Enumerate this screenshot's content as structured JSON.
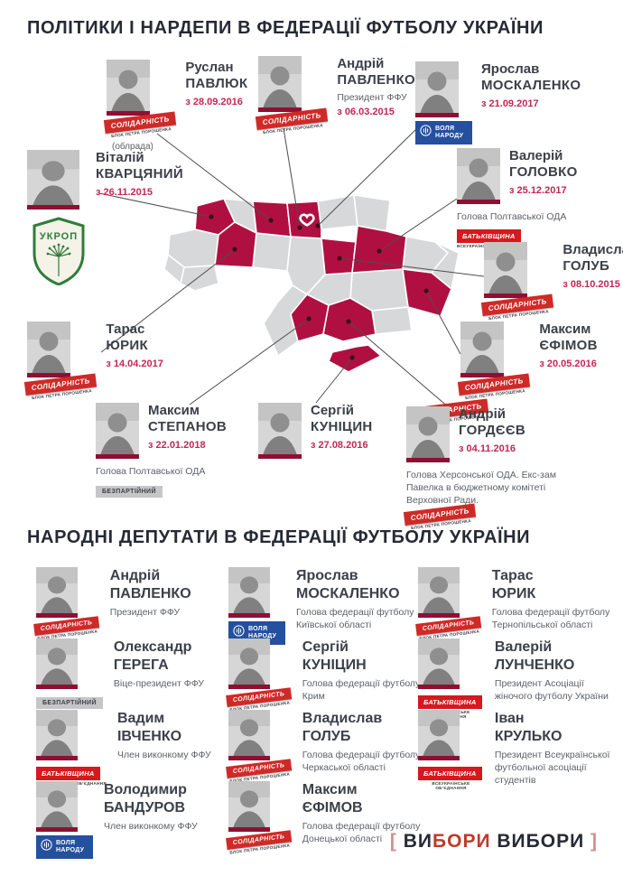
{
  "title1": "ПОЛІТИКИ І НАРДЕПИ В ФЕДЕРАЦІЇ ФУТБОЛУ УКРАЇНИ",
  "title2": "НАРОДНІ ДЕПУТАТИ В ФЕДЕРАЦІЇ ФУТБОЛУ УКРАЇНИ",
  "footer": {
    "open": "[ ",
    "part1": "ВИ",
    "part2": "БОРИ",
    "part3": " ВИБОРИ",
    "close": " ]"
  },
  "colors": {
    "crimson_map": "#b01041",
    "map_gray": "#d7d8da",
    "date_red": "#c22753",
    "solidarnist_red": "#cf2a27",
    "batkivshchyna_red": "#d6181f",
    "volia_blue": "#24509e",
    "bezpartiinyi_gray": "#c6c6c8",
    "ukrop_green": "#2e7d3a",
    "photo_bar_maroon": "#8e0f34",
    "navy_text": "#262a35"
  },
  "badges": {
    "solidarnist": {
      "label": "СОЛІДАРНІСТЬ",
      "sub": "БЛОК ПЕТРА ПОРОШЕНКА"
    },
    "batkivshchyna": {
      "label": "БАТЬКІВЩИНА",
      "sub": "ВСЕУКРАЇНСЬКЕ ОБ’ЄДНАННЯ"
    },
    "volia": {
      "label": "ВОЛЯ НАРОДУ"
    },
    "bezpartiinyi": {
      "label": "БЕЗПАРТІЙНИЙ"
    },
    "ukrop": {
      "label": "УКРОП"
    }
  },
  "network": {
    "people": [
      {
        "id": "pavliuk",
        "first": "Руслан",
        "last": "ПАВЛЮК",
        "date": "з 28.09.2016",
        "badge": "solidarnist",
        "note": "(облрада)"
      },
      {
        "id": "pavlenko",
        "first": "Андрій",
        "last": "ПАВЛЕНКО",
        "role": "Президент ФФУ",
        "date": "з 06.03.2015",
        "badge": "solidarnist"
      },
      {
        "id": "moskalenko",
        "first": "Ярослав",
        "last": "МОСКАЛЕНКО",
        "date": "з 21.09.2017",
        "badge": "volia"
      },
      {
        "id": "kvartsianyi",
        "first": "Віталій",
        "last": "КВАРЦЯНИЙ",
        "date": "з 26.11.2015",
        "badge": "ukrop"
      },
      {
        "id": "holovko",
        "first": "Валерій",
        "last": "ГОЛОВКО",
        "date": "з 25.12.2017",
        "subtitle": "Голова Полтавської ОДА",
        "badge": "batkivshchyna"
      },
      {
        "id": "holub",
        "first": "Владислав",
        "last": "ГОЛУБ",
        "date": "з 08.10.2015",
        "badge": "solidarnist"
      },
      {
        "id": "yefimov",
        "first": "Максим",
        "last": "ЄФІМОВ",
        "date": "з 20.05.2016",
        "badge": "solidarnist"
      },
      {
        "id": "yuryk",
        "first": "Тарас",
        "last": "ЮРИК",
        "date": "з 14.04.2017",
        "badge": "solidarnist"
      },
      {
        "id": "stepanov",
        "first": "Максим",
        "last": "СТЕПАНОВ",
        "date": "з 22.01.2018",
        "subtitle": "Голова Полтавської ОДА",
        "badge": "bezpartiinyi"
      },
      {
        "id": "kunitsyn",
        "first": "Сергій",
        "last": "КУНІЦИН",
        "date": "з 27.08.2016",
        "badge": "solidarnist"
      },
      {
        "id": "hordieiev",
        "first": "Андрій",
        "last": "ГОРДЄЄВ",
        "date": "з 04.11.2016",
        "subtitle": "Голова Херсонської ОДА. Екс-зам Павелка в бюджетному комітеті Верховної Ради.",
        "badge": "solidarnist"
      }
    ]
  },
  "deputies": [
    {
      "first": "Андрій",
      "last": "ПАВЛЕНКО",
      "role": "Президент ФФУ",
      "badge": "solidarnist"
    },
    {
      "first": "Олександр",
      "last": "ГЕРЕГА",
      "role": "Віце-президент ФФУ",
      "badge": "bezpartiinyi"
    },
    {
      "first": "Вадим",
      "last": "ІВЧЕНКО",
      "role": "Член виконкому ФФУ",
      "badge": "batkivshchyna"
    },
    {
      "first": "Володимир",
      "last": "БАНДУРОВ",
      "role": "Член виконкому ФФУ",
      "badge": "volia"
    },
    {
      "first": "Ярослав",
      "last": "МОСКАЛЕНКО",
      "role": "Голова федерації футболу Київської області",
      "badge": "volia"
    },
    {
      "first": "Сергій",
      "last": "КУНІЦИН",
      "role": "Голова федерації футболу АР Крим",
      "badge": "solidarnist"
    },
    {
      "first": "Владислав",
      "last": "ГОЛУБ",
      "role": "Голова федерації футболу Черкаської області",
      "badge": "solidarnist"
    },
    {
      "first": "Максим",
      "last": "ЄФІМОВ",
      "role": "Голова федерації футболу Донецької області",
      "badge": "solidarnist"
    },
    {
      "first": "Тарас",
      "last": "ЮРИК",
      "role": "Голова федерації футболу Тернопільської області",
      "badge": "solidarnist"
    },
    {
      "first": "Валерій",
      "last": "ЛУНЧЕНКО",
      "role": "Президент Асоціації жіночого футболу України",
      "badge": "batkivshchyna"
    },
    {
      "first": "Іван",
      "last": "КРУЛЬКО",
      "role": "Президент Всеукраїнської футбольної асоціації студентів",
      "badge": "batkivshchyna"
    }
  ]
}
